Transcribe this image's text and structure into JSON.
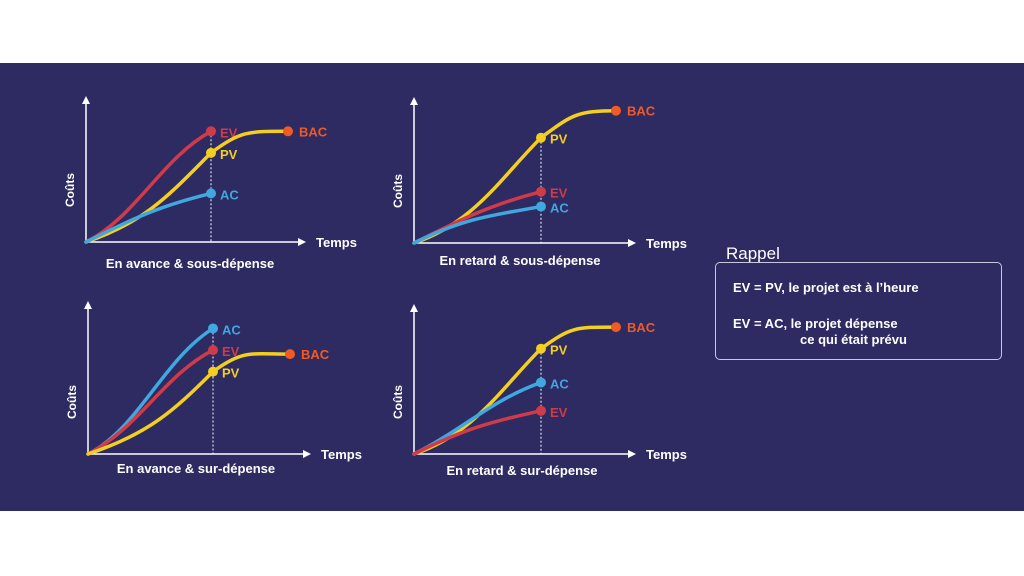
{
  "colors": {
    "background": "#2e2a62",
    "EV": "#d03b4a",
    "PV": "#f3cf1f",
    "AC": "#40a7df",
    "BAC": "#f05a24"
  },
  "axis_labels": {
    "y": "Coûts",
    "x": "Temps"
  },
  "legend_labels": {
    "EV": "EV",
    "PV": "PV",
    "AC": "AC",
    "BAC": "BAC"
  },
  "charts": [
    {
      "title": "En avance & sous-dépense",
      "series": [
        {
          "name": "EV",
          "end": [
            0.62,
            0.82
          ]
        },
        {
          "name": "PV",
          "end": [
            0.62,
            0.66
          ]
        },
        {
          "name": "AC",
          "end": [
            0.62,
            0.36
          ]
        },
        {
          "name": "BAC",
          "end": [
            1.0,
            0.82
          ]
        }
      ]
    },
    {
      "title": "En retard & sous-dépense",
      "series": [
        {
          "name": "PV",
          "end": [
            0.62,
            0.78
          ]
        },
        {
          "name": "EV",
          "end": [
            0.62,
            0.38
          ]
        },
        {
          "name": "AC",
          "end": [
            0.62,
            0.27
          ]
        },
        {
          "name": "BAC",
          "end": [
            1.0,
            0.98
          ]
        }
      ]
    },
    {
      "title": "En avance & sur-dépense",
      "series": [
        {
          "name": "AC",
          "end": [
            0.62,
            0.93
          ]
        },
        {
          "name": "EV",
          "end": [
            0.62,
            0.77
          ]
        },
        {
          "name": "PV",
          "end": [
            0.62,
            0.61
          ]
        },
        {
          "name": "BAC",
          "end": [
            1.0,
            0.74
          ]
        }
      ]
    },
    {
      "title": "En retard & sur-dépense",
      "series": [
        {
          "name": "PV",
          "end": [
            0.62,
            0.78
          ]
        },
        {
          "name": "AC",
          "end": [
            0.62,
            0.53
          ]
        },
        {
          "name": "EV",
          "end": [
            0.62,
            0.32
          ]
        },
        {
          "name": "BAC",
          "end": [
            1.0,
            0.94
          ]
        }
      ]
    }
  ],
  "recall": {
    "title": "Rappel",
    "line1": "EV = PV,  le projet est à l’heure",
    "line2": "EV = AC, le projet dépense",
    "line3": "ce qui était prévu"
  }
}
